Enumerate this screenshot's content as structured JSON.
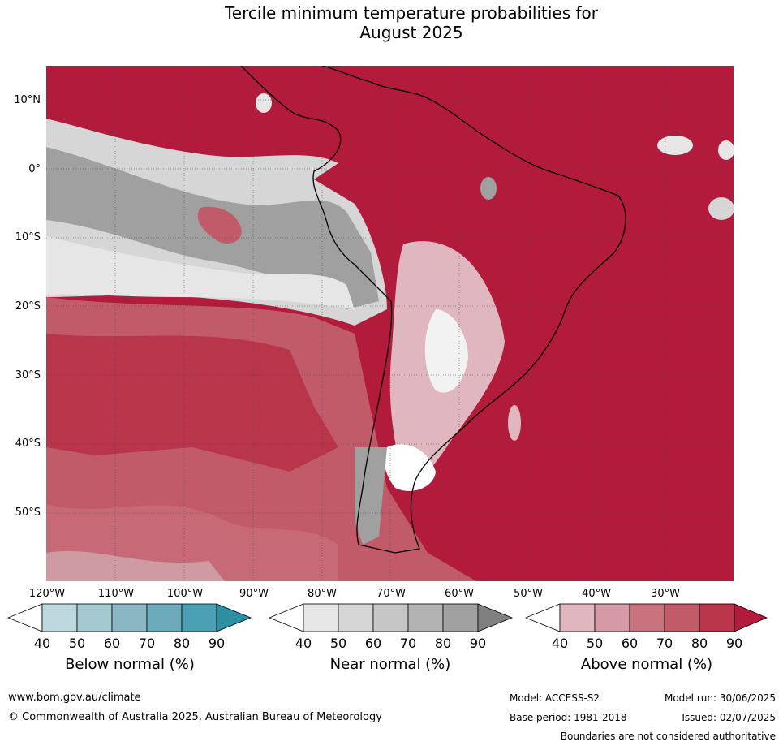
{
  "title": {
    "line1": "Tercile minimum temperature probabilities for",
    "line2": "August 2025"
  },
  "map": {
    "lat_labels": [
      "10°N",
      "0°",
      "10°S",
      "20°S",
      "30°S",
      "40°S",
      "50°S"
    ],
    "lon_labels": [
      "120°W",
      "110°W",
      "100°W",
      "90°W",
      "80°W",
      "70°W",
      "60°W",
      "50°W",
      "40°W",
      "30°W"
    ]
  },
  "colorbars": [
    {
      "title": "Below normal (%)",
      "ticks": [
        "40",
        "50",
        "60",
        "70",
        "80",
        "90"
      ],
      "colors": [
        "#ffffff",
        "#bdd8de",
        "#a5c9d0",
        "#8ab7c3",
        "#6cabbb",
        "#4ca0b3",
        "#2e8ea3"
      ]
    },
    {
      "title": "Near normal (%)",
      "ticks": [
        "40",
        "50",
        "60",
        "70",
        "80",
        "90"
      ],
      "colors": [
        "#ffffff",
        "#e6e6e6",
        "#d6d6d6",
        "#c6c6c6",
        "#b3b3b3",
        "#a0a0a0",
        "#808080"
      ]
    },
    {
      "title": "Above normal (%)",
      "ticks": [
        "40",
        "50",
        "60",
        "70",
        "80",
        "90"
      ],
      "colors": [
        "#ffffff",
        "#e1b7bf",
        "#d59aa5",
        "#c9737f",
        "#c25b69",
        "#b93549",
        "#b31b3c"
      ]
    }
  ],
  "footer": {
    "website": "www.bom.gov.au/climate",
    "copyright": "© Commonwealth of Australia 2025, Australian Bureau of Meteorology",
    "model": "Model: ACCESS-S2",
    "base_period": "Base period: 1981-2018",
    "model_run": "Model run: 30/06/2025",
    "issued": "Issued: 02/07/2025",
    "disclaimer": "Boundaries are not considered authoritative"
  }
}
